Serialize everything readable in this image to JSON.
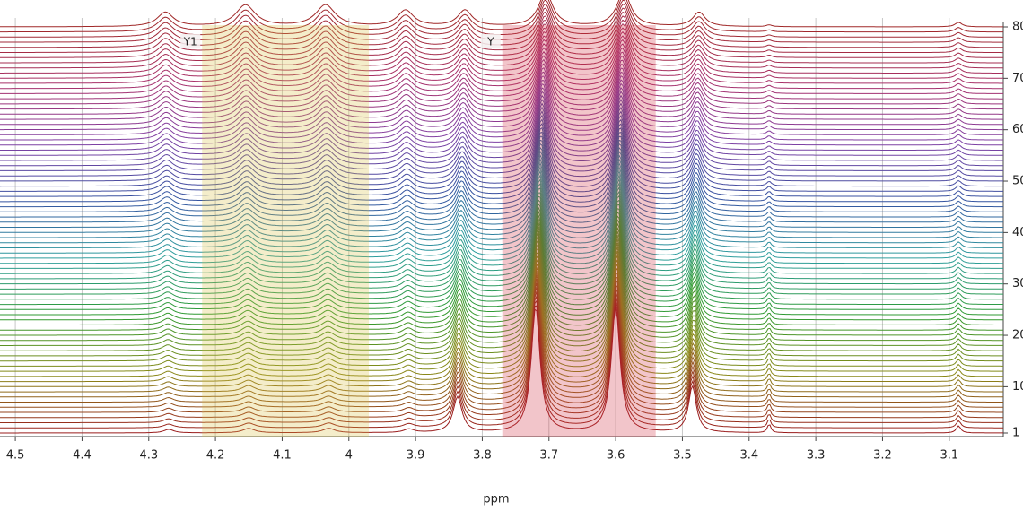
{
  "chart_data": {
    "type": "stacked-spectra",
    "x_label": "ppm",
    "xlim": [
      4.523,
      3.019
    ],
    "xticks": [
      4.5,
      4.4,
      4.3,
      4.2,
      4.1,
      4.0,
      3.9,
      3.8,
      3.7,
      3.6,
      3.5,
      3.4,
      3.3,
      3.2,
      3.1
    ],
    "ylim": [
      1,
      80
    ],
    "yticks": [
      1,
      10,
      20,
      30,
      40,
      50,
      60,
      70,
      80
    ],
    "grid": true,
    "colors": [
      "#9a1c1c",
      "#8a8a18",
      "#2f9a2f",
      "#2e9e9e",
      "#3452a0",
      "#8040a4",
      "#a8306a",
      "#a02828"
    ],
    "regions": [
      {
        "label": "Y1",
        "from": 4.22,
        "to": 3.97,
        "color": "#d8c040"
      },
      {
        "label": "Y",
        "from": 3.77,
        "to": 3.54,
        "color": "#d03040"
      }
    ],
    "peaks": [
      {
        "ppm_first": 4.27,
        "ppm_last": 4.275,
        "width": 0.009,
        "height_first": 4,
        "height_last": 16
      },
      {
        "ppm_first": 4.15,
        "ppm_last": 4.155,
        "width": 0.011,
        "height_first": 5,
        "height_last": 24
      },
      {
        "ppm_first": 4.03,
        "ppm_last": 4.035,
        "width": 0.011,
        "height_first": 5,
        "height_last": 24
      },
      {
        "ppm_first": 3.91,
        "ppm_last": 3.915,
        "width": 0.009,
        "height_first": 4,
        "height_last": 18
      },
      {
        "ppm_first": 3.837,
        "ppm_last": 3.826,
        "width": 0.008,
        "height_first": 40,
        "height_last": 18
      },
      {
        "ppm_first": 3.72,
        "ppm_last": 3.705,
        "width": 0.008,
        "height_first": 140,
        "height_last": 38
      },
      {
        "ppm_first": 3.6,
        "ppm_last": 3.588,
        "width": 0.008,
        "height_first": 140,
        "height_last": 38
      },
      {
        "ppm_first": 3.485,
        "ppm_last": 3.475,
        "width": 0.007,
        "height_first": 52,
        "height_last": 16
      },
      {
        "ppm_first": 3.37,
        "ppm_last": 3.37,
        "width": 0.003,
        "height_first": 10,
        "height_last": 2
      },
      {
        "ppm_first": 3.086,
        "ppm_last": 3.086,
        "width": 0.004,
        "height_first": 8,
        "height_last": 5
      }
    ]
  }
}
